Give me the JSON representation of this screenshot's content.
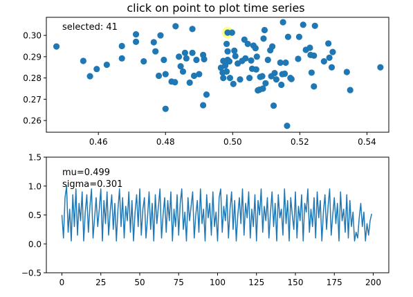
{
  "chart_data": [
    {
      "type": "scatter",
      "title": "click on point to plot time series",
      "xlabel": "",
      "ylabel": "",
      "xlim": [
        0.4445,
        0.5465
      ],
      "ylim": [
        0.2545,
        0.3085
      ],
      "x_ticks": [
        "0.46",
        "0.48",
        "0.50",
        "0.52",
        "0.54"
      ],
      "x_tick_values": [
        0.46,
        0.48,
        0.5,
        0.52,
        0.54
      ],
      "y_ticks": [
        "0.26",
        "0.27",
        "0.28",
        "0.29",
        "0.30"
      ],
      "y_tick_values": [
        0.26,
        0.27,
        0.28,
        0.29,
        0.3
      ],
      "annotation": "selected: 41",
      "grid": false,
      "point_color": "#1f77b4",
      "highlight_color": "#ffff00",
      "selected_point": {
        "x": 0.4985,
        "y": 0.3013
      },
      "points": [
        [
          0.4475,
          0.2948
        ],
        [
          0.4555,
          0.288
        ],
        [
          0.4575,
          0.2808
        ],
        [
          0.4595,
          0.2842
        ],
        [
          0.4625,
          0.2862
        ],
        [
          0.467,
          0.295
        ],
        [
          0.467,
          0.2892
        ],
        [
          0.4712,
          0.3005
        ],
        [
          0.4712,
          0.297
        ],
        [
          0.4735,
          0.2878
        ],
        [
          0.4765,
          0.2968
        ],
        [
          0.477,
          0.2925
        ],
        [
          0.478,
          0.281
        ],
        [
          0.4785,
          0.3
        ],
        [
          0.4795,
          0.2885
        ],
        [
          0.48,
          0.2818
        ],
        [
          0.48,
          0.2655
        ],
        [
          0.4818,
          0.2783
        ],
        [
          0.4828,
          0.278
        ],
        [
          0.483,
          0.3043
        ],
        [
          0.484,
          0.29
        ],
        [
          0.4845,
          0.2855
        ],
        [
          0.4852,
          0.283
        ],
        [
          0.4858,
          0.2918
        ],
        [
          0.4862,
          0.2892
        ],
        [
          0.4872,
          0.2778
        ],
        [
          0.488,
          0.303
        ],
        [
          0.488,
          0.2918
        ],
        [
          0.4885,
          0.281
        ],
        [
          0.4892,
          0.2885
        ],
        [
          0.49,
          0.2818
        ],
        [
          0.4912,
          0.2672
        ],
        [
          0.4912,
          0.2908
        ],
        [
          0.4915,
          0.2888
        ],
        [
          0.4922,
          0.2722
        ],
        [
          0.4965,
          0.2848
        ],
        [
          0.497,
          0.2825
        ],
        [
          0.4972,
          0.288
        ],
        [
          0.4972,
          0.28
        ],
        [
          0.4978,
          0.2858
        ],
        [
          0.4982,
          0.283
        ],
        [
          0.4982,
          0.296
        ],
        [
          0.4985,
          0.2885
        ],
        [
          0.4985,
          0.2925
        ],
        [
          0.4985,
          0.3013
        ],
        [
          0.499,
          0.2878
        ],
        [
          0.4992,
          0.28
        ],
        [
          0.4998,
          0.3013
        ],
        [
          0.5002,
          0.2772
        ],
        [
          0.5005,
          0.2928
        ],
        [
          0.5008,
          0.2903
        ],
        [
          0.5015,
          0.2868
        ],
        [
          0.5022,
          0.2793
        ],
        [
          0.5028,
          0.288
        ],
        [
          0.5035,
          0.298
        ],
        [
          0.5038,
          0.2892
        ],
        [
          0.5045,
          0.296
        ],
        [
          0.505,
          0.28
        ],
        [
          0.5055,
          0.2882
        ],
        [
          0.5058,
          0.2843
        ],
        [
          0.5062,
          0.2952
        ],
        [
          0.5068,
          0.294
        ],
        [
          0.507,
          0.284
        ],
        [
          0.5072,
          0.29
        ],
        [
          0.5075,
          0.2742
        ],
        [
          0.508,
          0.2745
        ],
        [
          0.5082,
          0.2805
        ],
        [
          0.5088,
          0.2808
        ],
        [
          0.509,
          0.275
        ],
        [
          0.5092,
          0.2985
        ],
        [
          0.5095,
          0.3025
        ],
        [
          0.5098,
          0.2775
        ],
        [
          0.5105,
          0.2885
        ],
        [
          0.5112,
          0.293
        ],
        [
          0.5115,
          0.2808
        ],
        [
          0.5118,
          0.2948
        ],
        [
          0.5122,
          0.267
        ],
        [
          0.5125,
          0.2823
        ],
        [
          0.513,
          0.2793
        ],
        [
          0.5142,
          0.2872
        ],
        [
          0.5145,
          0.2768
        ],
        [
          0.5148,
          0.2818
        ],
        [
          0.515,
          0.3062
        ],
        [
          0.5155,
          0.282
        ],
        [
          0.5158,
          0.2872
        ],
        [
          0.5162,
          0.2575
        ],
        [
          0.5165,
          0.2993
        ],
        [
          0.5172,
          0.28
        ],
        [
          0.5175,
          0.2795
        ],
        [
          0.5195,
          0.289
        ],
        [
          0.5198,
          0.2993
        ],
        [
          0.521,
          0.305
        ],
        [
          0.5218,
          0.2932
        ],
        [
          0.523,
          0.2942
        ],
        [
          0.5232,
          0.2908
        ],
        [
          0.5235,
          0.2825
        ],
        [
          0.5242,
          0.276
        ],
        [
          0.5242,
          0.2905
        ],
        [
          0.5272,
          0.2878
        ],
        [
          0.5285,
          0.2962
        ],
        [
          0.5288,
          0.2895
        ],
        [
          0.5295,
          0.285
        ],
        [
          0.5298,
          0.2922
        ],
        [
          0.534,
          0.2828
        ],
        [
          0.535,
          0.2743
        ],
        [
          0.544,
          0.285
        ],
        [
          0.5245,
          0.3045
        ]
      ]
    },
    {
      "type": "line",
      "title": "",
      "xlabel": "",
      "ylabel": "",
      "xlim": [
        -10,
        210
      ],
      "ylim": [
        -0.5,
        1.5
      ],
      "x_ticks": [
        "0",
        "25",
        "50",
        "75",
        "100",
        "125",
        "150",
        "175",
        "200"
      ],
      "x_tick_values": [
        0,
        25,
        50,
        75,
        100,
        125,
        150,
        175,
        200
      ],
      "y_ticks": [
        "−0.5",
        "0.0",
        "0.5",
        "1.0",
        "1.5"
      ],
      "y_tick_values": [
        -0.5,
        0.0,
        0.5,
        1.0,
        1.5
      ],
      "annotations": [
        "mu=0.499",
        "sigma=0.301"
      ],
      "grid": false,
      "line_color": "#1f77b4",
      "series": [
        {
          "values": [
            0.5,
            0.1,
            0.8,
            1.0,
            0.2,
            0.6,
            0.05,
            0.85,
            0.3,
            0.95,
            0.15,
            0.7,
            0.4,
            0.9,
            0.05,
            0.55,
            0.85,
            0.2,
            0.65,
            0.95,
            0.1,
            0.45,
            0.8,
            0.3,
            0.6,
            0.95,
            0.05,
            0.75,
            0.35,
            0.9,
            0.15,
            0.55,
            0.85,
            0.25,
            0.7,
            0.05,
            0.6,
            0.95,
            0.3,
            0.8,
            0.1,
            0.65,
            0.4,
            0.9,
            0.2,
            0.75,
            0.05,
            0.55,
            0.85,
            0.3,
            0.95,
            0.15,
            0.6,
            0.8,
            0.1,
            0.45,
            0.9,
            0.25,
            0.7,
            0.05,
            0.85,
            0.35,
            0.65,
            0.95,
            0.1,
            0.5,
            0.8,
            0.2,
            0.75,
            0.4,
            0.9,
            0.05,
            0.6,
            0.3,
            0.85,
            0.15,
            0.7,
            0.95,
            0.25,
            0.55,
            0.05,
            0.8,
            0.4,
            0.65,
            0.9,
            0.1,
            0.5,
            0.75,
            0.2,
            0.95,
            0.35,
            0.6,
            0.05,
            0.85,
            0.45,
            0.7,
            0.15,
            0.9,
            0.3,
            0.55,
            0.05,
            0.8,
            0.95,
            0.2,
            0.65,
            0.4,
            0.85,
            0.1,
            0.6,
            0.9,
            0.25,
            0.75,
            0.05,
            0.5,
            0.8,
            0.35,
            0.95,
            0.15,
            0.7,
            0.45,
            0.9,
            0.1,
            0.6,
            0.3,
            0.85,
            0.05,
            0.75,
            0.5,
            0.95,
            0.2,
            0.65,
            0.4,
            0.8,
            0.1,
            0.55,
            0.9,
            0.3,
            0.7,
            0.05,
            0.85,
            0.45,
            0.6,
            0.15,
            0.95,
            0.35,
            0.75,
            0.05,
            0.8,
            0.5,
            0.25,
            0.9,
            0.1,
            0.65,
            0.4,
            0.85,
            0.05,
            0.7,
            0.55,
            0.95,
            0.2,
            0.6,
            0.3,
            0.8,
            0.1,
            0.9,
            0.45,
            0.75,
            0.05,
            0.55,
            0.85,
            0.25,
            0.65,
            0.95,
            0.15,
            0.5,
            0.8,
            0.35,
            0.7,
            0.05,
            0.9,
            0.4,
            0.6,
            0.2,
            0.85,
            0.1,
            0.75,
            0.3,
            0.55,
            0.05,
            0.2,
            0.1,
            0.45,
            0.7,
            0.3,
            0.55,
            0.05,
            0.35,
            0.15,
            0.4,
            0.52
          ]
        }
      ]
    }
  ]
}
